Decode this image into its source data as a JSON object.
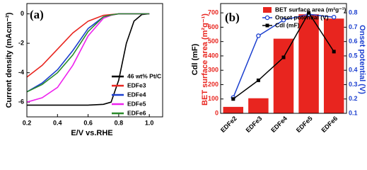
{
  "chart_data": [
    {
      "type": "line",
      "title": "(a)",
      "xlabel": "E/V vs.RHE",
      "ylabel": "Current density (mAcm⁻²)",
      "x": [
        0.2,
        0.3,
        0.4,
        0.5,
        0.6,
        0.7,
        0.75,
        0.8,
        0.85,
        0.9,
        0.95,
        1.0
      ],
      "series": [
        {
          "name": "46 wt% Pt/C",
          "color": "#000000",
          "values": [
            -6.2,
            -6.2,
            -6.2,
            -6.2,
            -6.2,
            -6.15,
            -6.0,
            -4.5,
            -2.0,
            -0.5,
            -0.05,
            0
          ]
        },
        {
          "name": "EDFe3",
          "color": "#e8251f",
          "values": [
            -4.3,
            -3.5,
            -2.4,
            -1.3,
            -0.5,
            -0.1,
            -0.05,
            0,
            0,
            0,
            0,
            0
          ]
        },
        {
          "name": "EDFe4",
          "color": "#1b3fcf",
          "values": [
            -5.3,
            -4.7,
            -3.8,
            -2.5,
            -1.0,
            -0.2,
            -0.08,
            0,
            0,
            0,
            0,
            0
          ]
        },
        {
          "name": "EDFe5",
          "color": "#ee22ee",
          "values": [
            -6.0,
            -5.7,
            -5.0,
            -3.5,
            -1.5,
            -0.3,
            -0.1,
            0,
            0,
            0,
            0,
            0
          ]
        },
        {
          "name": "EDFe6",
          "color": "#2a8a2a",
          "values": [
            -5.3,
            -4.8,
            -4.0,
            -2.8,
            -1.2,
            -0.2,
            -0.08,
            0,
            0,
            0,
            0,
            0
          ]
        }
      ],
      "xlim": [
        0.2,
        1.05
      ],
      "xticks": [
        0.2,
        0.4,
        0.6,
        0.8,
        {
          "value": 1,
          "label": "1.0"
        }
      ],
      "ylim": [
        -7,
        0.7
      ],
      "yticks": [
        -6,
        -4,
        -2,
        0
      ]
    },
    {
      "type": "bar",
      "title": "(b)",
      "categories": [
        "EDFe2",
        "EDFe3",
        "EDFe4",
        "EDFe5",
        "EDFe6"
      ],
      "ylabels": [
        {
          "text": "Cdl (mF)",
          "color": "#000000"
        },
        {
          "text": "BET surface area (m²g⁻¹)",
          "color": "#e8251f"
        }
      ],
      "y2label": "Onset potential (V)",
      "series": [
        {
          "name": "BET surface area (m²g⁻¹)",
          "type": "bar",
          "color": "#e8251f",
          "values": [
            45,
            105,
            520,
            690,
            660
          ]
        },
        {
          "name": "Onset potential (V)",
          "type": "line",
          "marker": "circle",
          "axis": "y2",
          "color": "#1b3fcf",
          "values": [
            0.21,
            0.64,
            0.75,
            0.79,
            0.77
          ]
        },
        {
          "name": "Cdl (mF)",
          "type": "line",
          "marker": "square",
          "axis": "y2",
          "color": "#000000",
          "values": [
            0.2,
            0.33,
            0.49,
            0.8,
            0.53
          ]
        }
      ],
      "ylim": [
        0,
        750
      ],
      "yticks": [
        0,
        100,
        200,
        300,
        400,
        500,
        600,
        700
      ],
      "ytick_color": "#e8251f",
      "y2lim": [
        0.1,
        0.85
      ],
      "y2ticks": [
        0.1,
        0.2,
        0.3,
        0.4,
        0.5,
        0.6,
        0.7,
        0.8
      ],
      "y2tick_color": "#1b3fcf"
    }
  ]
}
